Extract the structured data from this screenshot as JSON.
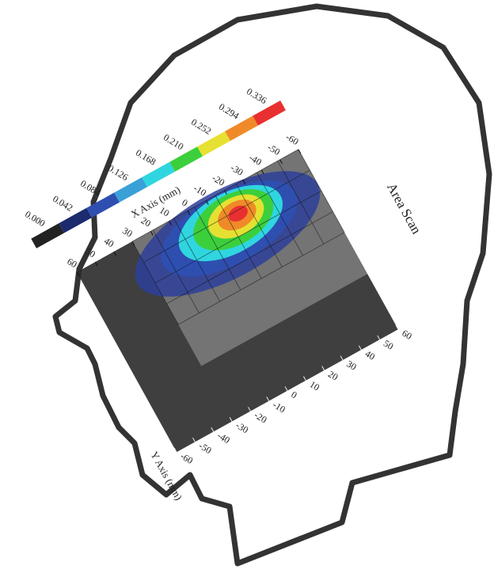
{
  "title": "Area Scan",
  "colorbar": {
    "labels": [
      "0.000",
      "0.042",
      "0.084",
      "0.126",
      "0.168",
      "0.210",
      "0.252",
      "0.294",
      "0.336"
    ],
    "colors": [
      "#222222",
      "#1c2a6e",
      "#2e4fb0",
      "#3aa0d8",
      "#2fd6e0",
      "#3ccf3c",
      "#e6e032",
      "#f08a28",
      "#e83030"
    ]
  },
  "x_axis": {
    "label": "X Axis (mm)",
    "ticks": [
      "60",
      "50",
      "40",
      "30",
      "20",
      "10",
      "0",
      "-10",
      "-20",
      "-30",
      "-40",
      "-50",
      "-60"
    ]
  },
  "y_axis": {
    "label": "Y Axis (mm)",
    "ticks": [
      "-60",
      "-50",
      "-40",
      "-30",
      "-20",
      "-10",
      "0",
      "10",
      "20",
      "30",
      "40",
      "50",
      "60"
    ]
  }
}
